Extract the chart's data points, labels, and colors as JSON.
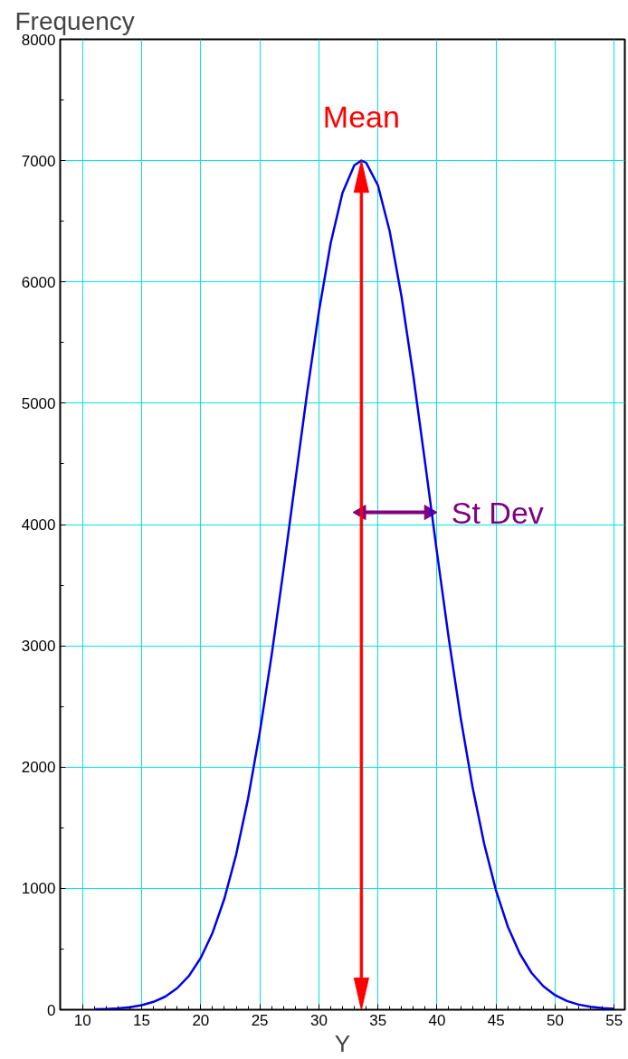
{
  "chart_data": {
    "type": "line",
    "xlabel": "Y",
    "ylabel": "Frequency",
    "x": [
      11,
      12,
      13,
      14,
      15,
      16,
      17,
      18,
      19,
      20,
      21,
      22,
      23,
      24,
      25,
      26,
      27,
      28,
      29,
      30,
      31,
      32,
      33,
      33.6,
      34,
      35,
      36,
      37,
      38,
      39,
      40,
      41,
      42,
      43,
      44,
      45,
      46,
      47,
      48,
      49,
      50,
      51,
      52,
      53,
      54,
      55
    ],
    "series": [
      {
        "type": "line",
        "name": "St Dev",
        "color": "#800080",
        "x": [
          33.6,
          39.3
        ],
        "values": [
          4100,
          4100
        ],
        "marker": "triangle"
      },
      {
        "color": "#0000ee",
        "values": [
          3,
          6,
          11,
          21,
          37,
          65,
          108,
          177,
          279,
          427,
          634,
          915,
          1280,
          1737,
          2288,
          2922,
          3622,
          4356,
          5083,
          5754,
          6320,
          6734,
          6962,
          7000,
          6983,
          6796,
          6416,
          5877,
          5223,
          4504,
          3768,
          3058,
          2408,
          1840,
          1364,
          981,
          684,
          464,
          304,
          194,
          120,
          72,
          42,
          24,
          13,
          7
        ]
      }
    ],
    "xlim": [
      8.1,
      55.9
    ],
    "ylim": [
      0,
      8000
    ],
    "xticks": [
      10,
      15,
      20,
      25,
      30,
      35,
      40,
      45,
      50,
      55
    ],
    "yticks": [
      0,
      1000,
      2000,
      3000,
      4000,
      5000,
      6000,
      7000,
      8000
    ],
    "grid": true,
    "marker": "none",
    "line_style": "solid",
    "ref_lines": [
      {
        "axis": "x",
        "value": 33.6,
        "label": "Mean",
        "color": "#ff0000"
      }
    ]
  }
}
